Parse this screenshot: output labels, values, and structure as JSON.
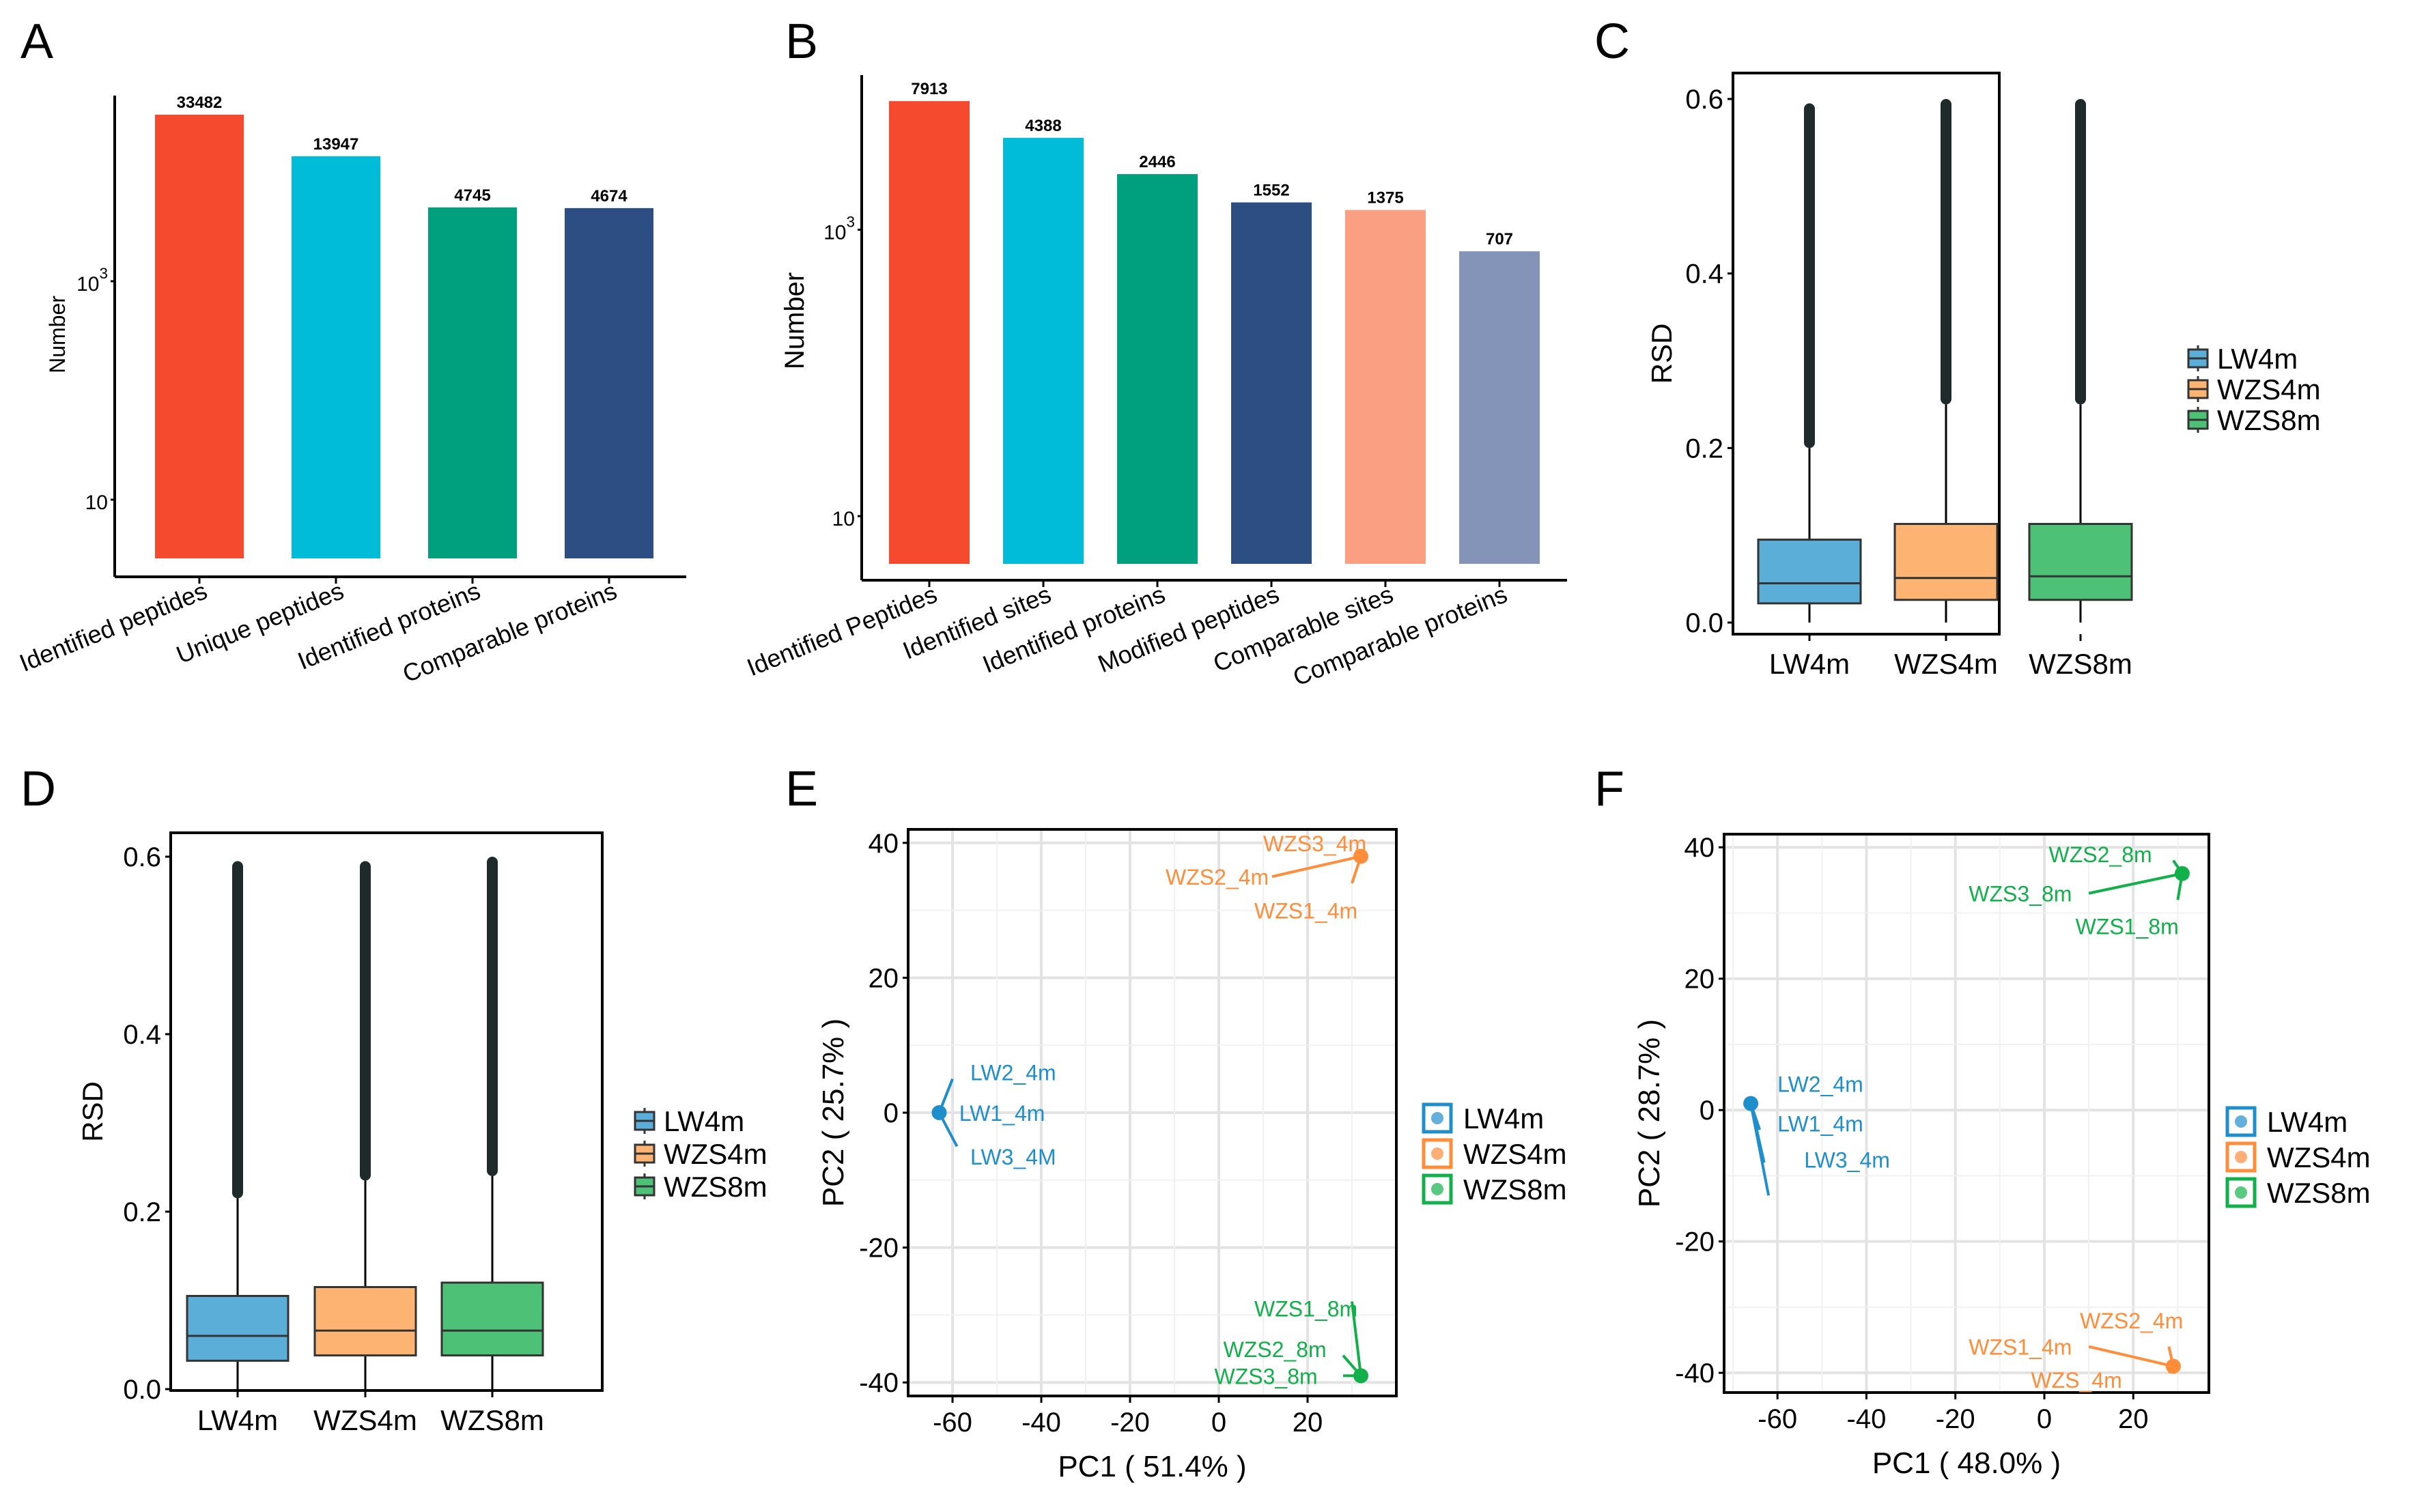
{
  "colors": {
    "red": "#F64A2E",
    "cyan": "#00BCD8",
    "teal": "#00A07E",
    "navy": "#2C4E82",
    "salmon": "#FA9F82",
    "slate": "#8394B8",
    "lw": "#1F8FCC",
    "lw_box": "#5BAED8",
    "wzs4": "#FF8D3A",
    "wzs4_box": "#FDB473",
    "wzs8": "#12B04A",
    "wzs8_box": "#4DC277",
    "outlier": "#1f2a2a",
    "grid": "#e3e3e3",
    "axis": "#000000"
  },
  "chart_data": [
    {
      "panel": "A",
      "type": "bar",
      "scale": "log",
      "ylabel": "Number",
      "ytick_labels": [
        {
          "base": "10",
          "exp": "3",
          "value": 1000
        },
        {
          "base": "10",
          "exp": "",
          "value": 10
        }
      ],
      "categories": [
        "Identified peptides",
        "Unique peptides",
        "Identified proteins",
        "Comparable proteins"
      ],
      "values": [
        33482,
        13947,
        4745,
        4674
      ],
      "value_labels": [
        "33482",
        "13947",
        "4745",
        "4674"
      ],
      "bar_colors": [
        "red",
        "cyan",
        "teal",
        "navy"
      ]
    },
    {
      "panel": "B",
      "type": "bar",
      "scale": "log",
      "ylabel": "Number",
      "ytick_labels": [
        {
          "base": "10",
          "exp": "3",
          "value": 1000
        },
        {
          "base": "10",
          "exp": "",
          "value": 10
        }
      ],
      "categories": [
        "Identified Peptides",
        "Identified sites",
        "Identified proteins",
        "Modified peptides",
        "Comparable sites",
        "Comparable proteins"
      ],
      "values": [
        7913,
        4388,
        2446,
        1552,
        1375,
        707
      ],
      "value_labels": [
        "7913",
        "4388",
        "2446",
        "1552",
        "1375",
        "707"
      ],
      "bar_colors": [
        "red",
        "cyan",
        "teal",
        "navy",
        "salmon",
        "slate"
      ]
    },
    {
      "panel": "C",
      "type": "box",
      "ylabel": "RSD",
      "ylim": [
        0,
        0.6
      ],
      "yticks": [
        "0.0",
        "0.2",
        "0.4",
        "0.6"
      ],
      "categories": [
        "LW4m",
        "WZS4m",
        "WZS8m"
      ],
      "boxes": [
        {
          "q1": 0.022,
          "median": 0.045,
          "q3": 0.095,
          "whisker_high": 0.2,
          "whisker_low": 0.0,
          "outlier_max": 0.595
        },
        {
          "q1": 0.026,
          "median": 0.051,
          "q3": 0.113,
          "whisker_high": 0.25,
          "whisker_low": 0.0,
          "outlier_max": 0.6
        },
        {
          "q1": 0.026,
          "median": 0.053,
          "q3": 0.113,
          "whisker_high": 0.25,
          "whisker_low": 0.0,
          "outlier_max": 0.6
        }
      ],
      "legend": [
        "LW4m",
        "WZS4m",
        "WZS8m"
      ]
    },
    {
      "panel": "D",
      "type": "box",
      "ylabel": "RSD",
      "ylim": [
        0,
        0.6
      ],
      "yticks": [
        "0.0",
        "0.2",
        "0.4",
        "0.6"
      ],
      "categories": [
        "LW4m",
        "WZS4m",
        "WZS8m"
      ],
      "boxes": [
        {
          "q1": 0.032,
          "median": 0.06,
          "q3": 0.105,
          "whisker_high": 0.215,
          "whisker_low": 0.0,
          "outlier_max": 0.595
        },
        {
          "q1": 0.038,
          "median": 0.066,
          "q3": 0.115,
          "whisker_high": 0.235,
          "whisker_low": 0.0,
          "outlier_max": 0.595
        },
        {
          "q1": 0.038,
          "median": 0.066,
          "q3": 0.12,
          "whisker_high": 0.24,
          "whisker_low": 0.0,
          "outlier_max": 0.6
        }
      ],
      "legend": [
        "LW4m",
        "WZS4m",
        "WZS8m"
      ]
    },
    {
      "panel": "E",
      "type": "scatter",
      "xlabel": "PC1 ( 51.4% )",
      "ylabel": "PC2 ( 25.7% )",
      "xlim": [
        -70,
        40
      ],
      "ylim": [
        -42,
        42
      ],
      "xticks": [
        "-60",
        "-40",
        "-20",
        "0",
        "20"
      ],
      "yticks": [
        "40",
        "20",
        "0",
        "-20",
        "-40"
      ],
      "groups": [
        {
          "name": "LW4m",
          "color": "lw",
          "centroid": [
            -63,
            0
          ],
          "points": [
            {
              "label": "LW2_4m",
              "x": -60,
              "y": 5,
              "lx": -56,
              "ly": 6
            },
            {
              "label": "LW1_4m",
              "x": -62,
              "y": 0,
              "lx": -58.5,
              "ly": 0
            },
            {
              "label": "LW3_4M",
              "x": -59,
              "y": -5,
              "lx": -56,
              "ly": -6.5
            }
          ]
        },
        {
          "name": "WZS4m",
          "color": "wzs4",
          "centroid": [
            32,
            38
          ],
          "points": [
            {
              "label": "WZS3_4m",
              "x": 31,
              "y": 39,
              "lx": 10,
              "ly": 40
            },
            {
              "label": "WZS2_4m",
              "x": 12,
              "y": 35,
              "lx": -12,
              "ly": 35
            },
            {
              "label": "WZS1_4m",
              "x": 30,
              "y": 34,
              "lx": 8,
              "ly": 30
            }
          ]
        },
        {
          "name": "WZS8m",
          "color": "wzs8",
          "centroid": [
            32,
            -39
          ],
          "points": [
            {
              "label": "WZS1_8m",
              "x": 30,
              "y": -28,
              "lx": 8,
              "ly": -29
            },
            {
              "label": "WZS2_8m",
              "x": 28,
              "y": -36,
              "lx": 1,
              "ly": -35
            },
            {
              "label": "WZS3_8m",
              "x": 28,
              "y": -39,
              "lx": -1,
              "ly": -39
            }
          ]
        }
      ],
      "legend": [
        "LW4m",
        "WZS4m",
        "WZS8m"
      ]
    },
    {
      "panel": "F",
      "type": "scatter",
      "xlabel": "PC1 ( 48.0% )",
      "ylabel": "PC2 ( 28.7% )",
      "xlim": [
        -72,
        37
      ],
      "ylim": [
        -43,
        42
      ],
      "xticks": [
        "-60",
        "-40",
        "-20",
        "0",
        "20"
      ],
      "yticks": [
        "40",
        "20",
        "0",
        "-20",
        "-40"
      ],
      "groups": [
        {
          "name": "LW4m",
          "color": "lw",
          "centroid": [
            -66,
            1
          ],
          "points": [
            {
              "label": "LW2_4m",
              "x": -64,
              "y": -3,
              "lx": -60,
              "ly": 4
            },
            {
              "label": "LW1_4m",
              "x": -63,
              "y": -8,
              "lx": -60,
              "ly": -2
            },
            {
              "label": "LW3_4m",
              "x": -62,
              "y": -13,
              "lx": -54,
              "ly": -7.5
            }
          ]
        },
        {
          "name": "WZS4m",
          "color": "wzs4",
          "centroid": [
            29,
            -39
          ],
          "points": [
            {
              "label": "WZS2_4m",
              "x": 28,
              "y": -36,
              "lx": 8,
              "ly": -32
            },
            {
              "label": "WZS1_4m",
              "x": 10,
              "y": -36,
              "lx": -17,
              "ly": -36
            },
            {
              "label": "WZS_4m",
              "x": 28,
              "y": -40,
              "lx": -3,
              "ly": -41
            }
          ]
        },
        {
          "name": "WZS8m",
          "color": "wzs8",
          "centroid": [
            31,
            36
          ],
          "points": [
            {
              "label": "WZS2_8m",
              "x": 29,
              "y": 38,
              "lx": 1,
              "ly": 39
            },
            {
              "label": "WZS3_8m",
              "x": 10,
              "y": 33,
              "lx": -17,
              "ly": 33
            },
            {
              "label": "WZS1_8m",
              "x": 30,
              "y": 32,
              "lx": 7,
              "ly": 28
            }
          ]
        }
      ],
      "legend": [
        "LW4m",
        "WZS4m",
        "WZS8m"
      ]
    }
  ]
}
